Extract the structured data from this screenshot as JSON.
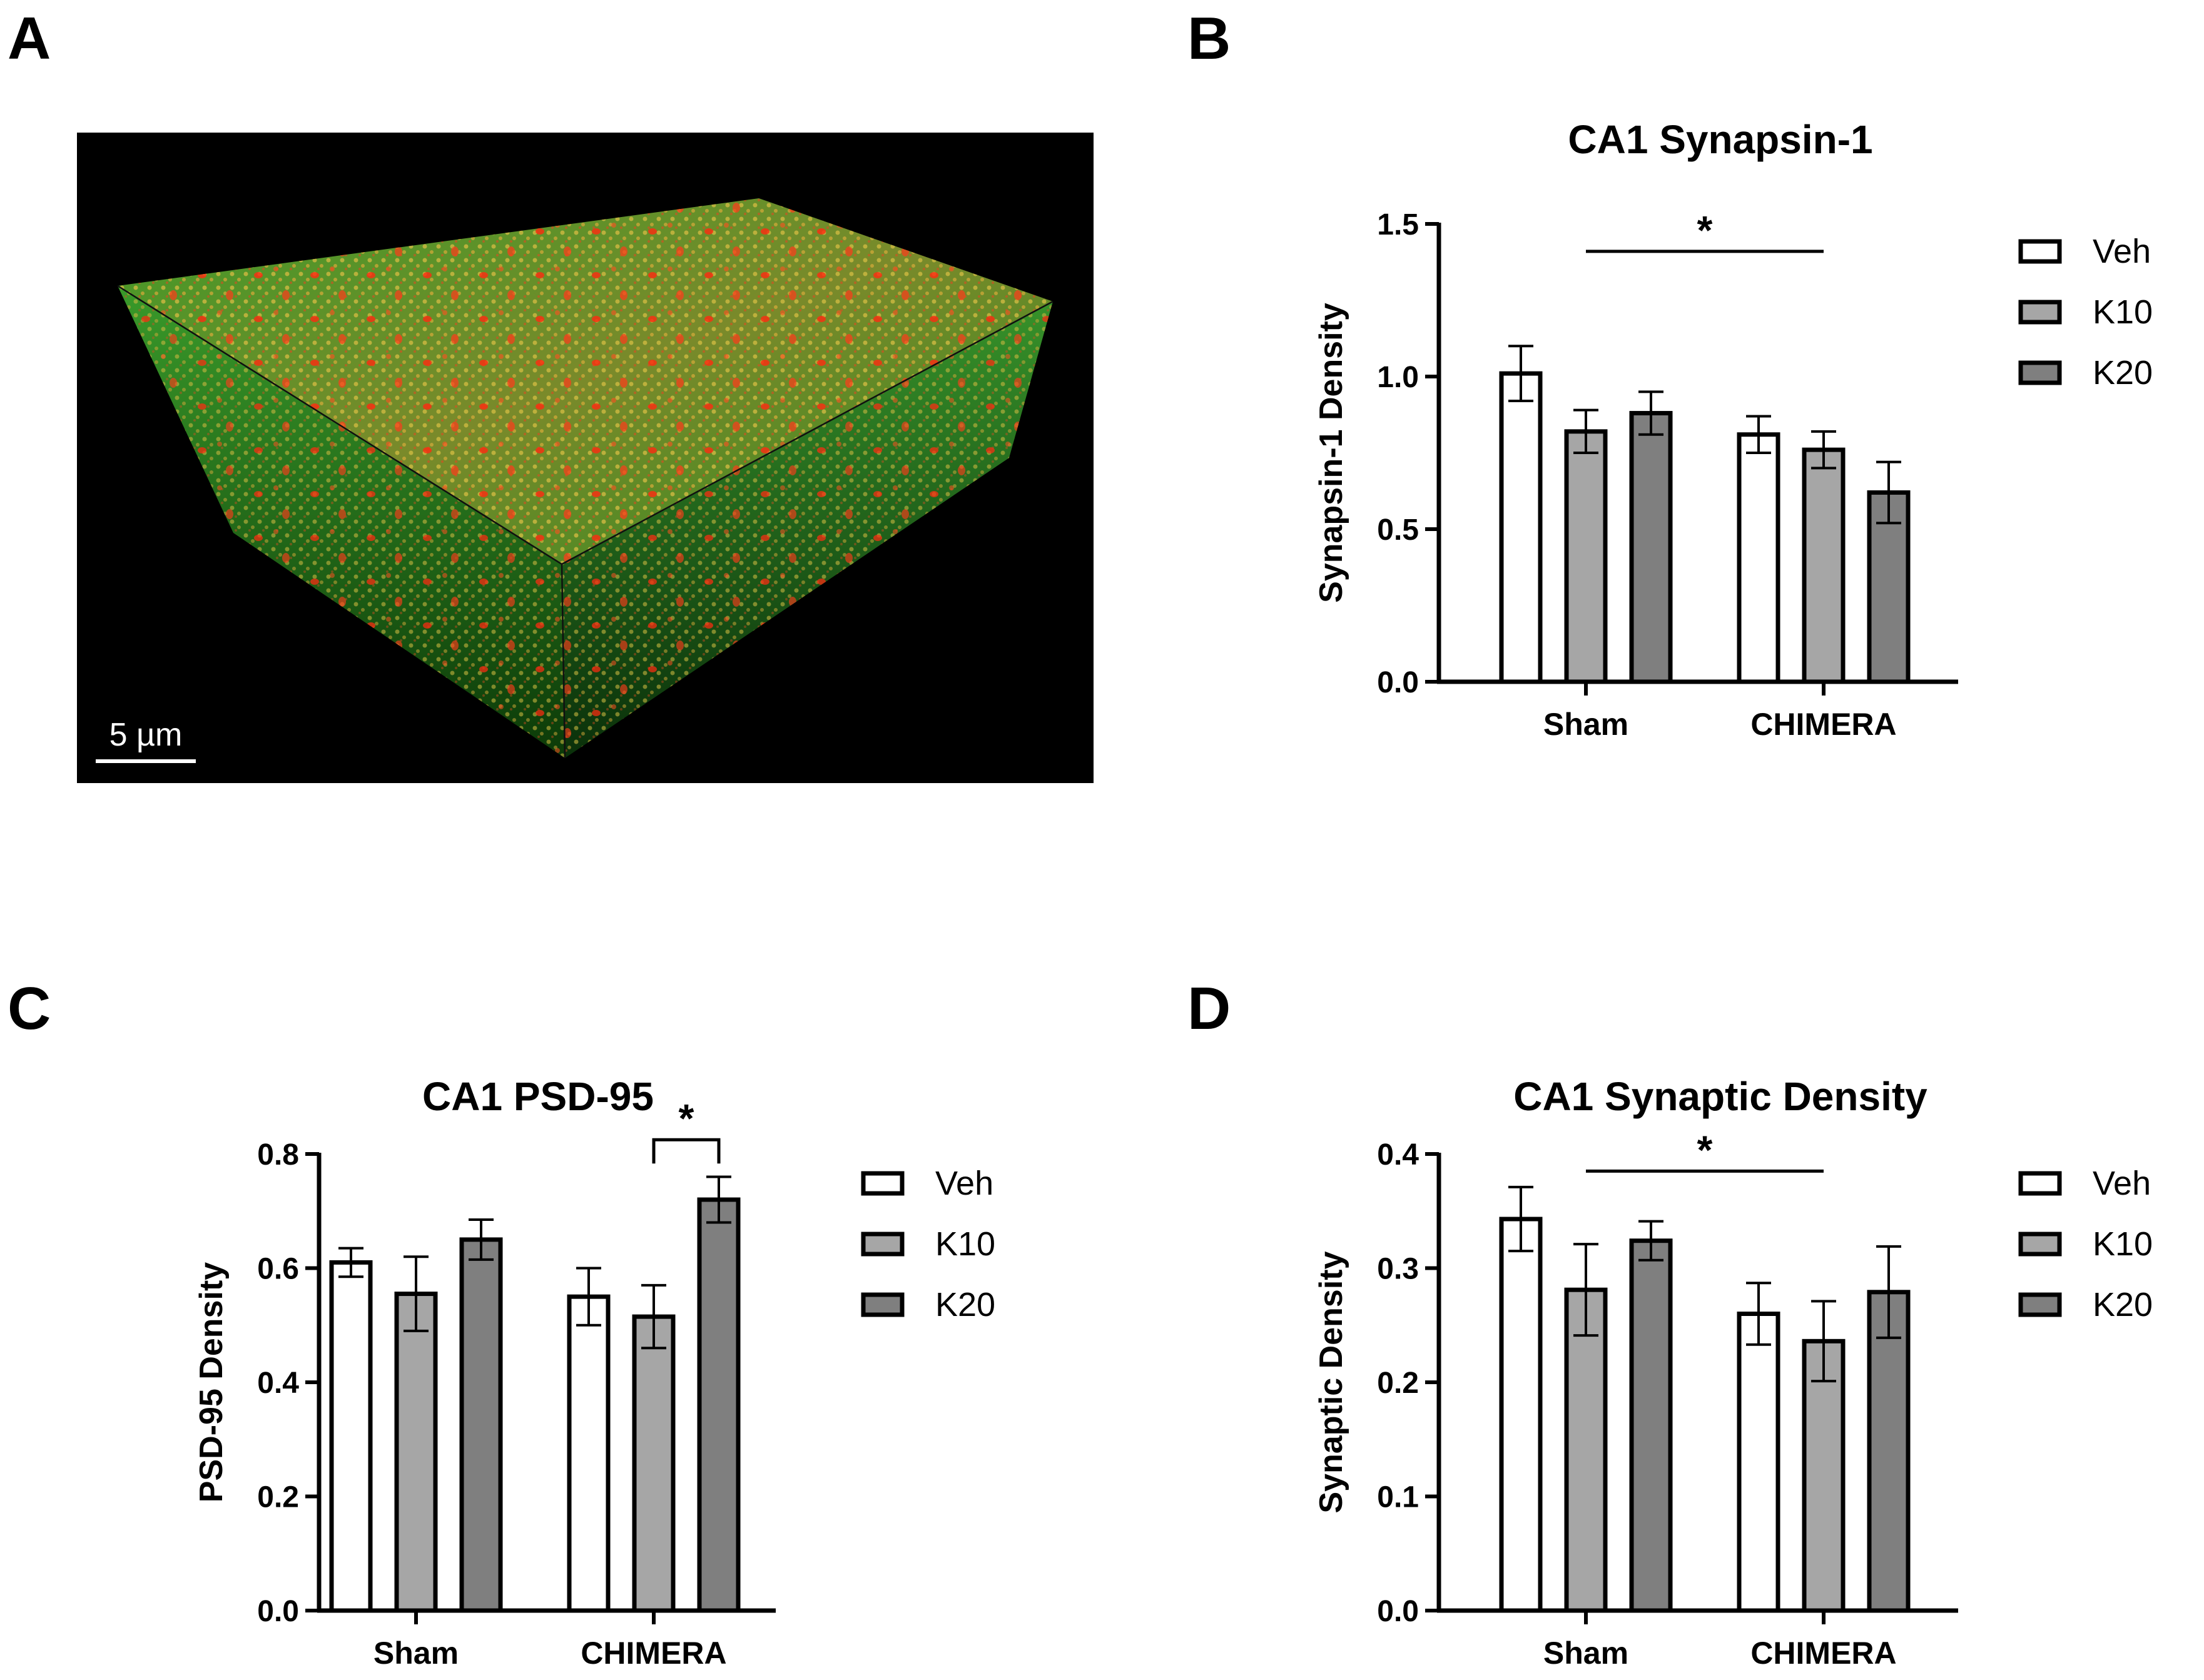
{
  "panels": {
    "a": {
      "letter": "A",
      "scale_label": "5 µm"
    },
    "b": {
      "letter": "B"
    },
    "c": {
      "letter": "C"
    },
    "d": {
      "letter": "D"
    }
  },
  "colors": {
    "Veh": "#ffffff",
    "K10": "#a6a6a6",
    "K20": "#7f7f7f",
    "axis": "#000000"
  },
  "chart_data": [
    {
      "id": "b",
      "type": "bar",
      "title": "CA1 Synapsin-1",
      "ylabel": "Synapsin-1 Density",
      "xlabel": "",
      "ylim": [
        0,
        1.5
      ],
      "yticks": [
        "0.0",
        "0.5",
        "1.0",
        "1.5"
      ],
      "ytick_values": [
        0,
        0.5,
        1.0,
        1.5
      ],
      "categories": [
        "Sham",
        "CHIMERA"
      ],
      "series": [
        {
          "name": "Veh",
          "values": [
            1.01,
            0.81
          ],
          "errors": [
            0.09,
            0.06
          ]
        },
        {
          "name": "K10",
          "values": [
            0.82,
            0.76
          ],
          "errors": [
            0.07,
            0.06
          ]
        },
        {
          "name": "K20",
          "values": [
            0.88,
            0.62
          ],
          "errors": [
            0.07,
            0.1
          ]
        }
      ],
      "legend": [
        "Veh",
        "K10",
        "K20"
      ],
      "legend_position": "right",
      "significance": [
        {
          "type": "line",
          "from": [
            0,
            1
          ],
          "to": [
            1,
            1
          ],
          "y": 1.41,
          "label": "*"
        }
      ]
    },
    {
      "id": "c",
      "type": "bar",
      "title": "CA1 PSD-95",
      "ylabel": "PSD-95 Density",
      "xlabel": "",
      "ylim": [
        0,
        0.8
      ],
      "yticks": [
        "0.0",
        "0.2",
        "0.4",
        "0.6",
        "0.8"
      ],
      "ytick_values": [
        0,
        0.2,
        0.4,
        0.6,
        0.8
      ],
      "categories": [
        "Sham",
        "CHIMERA"
      ],
      "series": [
        {
          "name": "Veh",
          "values": [
            0.61,
            0.55
          ],
          "errors": [
            0.025,
            0.05
          ]
        },
        {
          "name": "K10",
          "values": [
            0.555,
            0.515
          ],
          "errors": [
            0.065,
            0.055
          ]
        },
        {
          "name": "K20",
          "values": [
            0.65,
            0.72
          ],
          "errors": [
            0.035,
            0.04
          ]
        }
      ],
      "legend": [
        "Veh",
        "K10",
        "K20"
      ],
      "legend_position": "right",
      "significance": [
        {
          "type": "bracket",
          "from": [
            1,
            1
          ],
          "to": [
            1,
            2
          ],
          "y": 0.825,
          "label": "*"
        }
      ]
    },
    {
      "id": "d",
      "type": "bar",
      "title": "CA1 Synaptic Density",
      "ylabel": "Synaptic Density",
      "xlabel": "",
      "ylim": [
        0,
        0.4
      ],
      "yticks": [
        "0.0",
        "0.1",
        "0.2",
        "0.3",
        "0.4"
      ],
      "ytick_values": [
        0,
        0.1,
        0.2,
        0.3,
        0.4
      ],
      "categories": [
        "Sham",
        "CHIMERA"
      ],
      "series": [
        {
          "name": "Veh",
          "values": [
            0.343,
            0.26
          ],
          "errors": [
            0.028,
            0.027
          ]
        },
        {
          "name": "K10",
          "values": [
            0.281,
            0.236
          ],
          "errors": [
            0.04,
            0.035
          ]
        },
        {
          "name": "K20",
          "values": [
            0.324,
            0.279
          ],
          "errors": [
            0.017,
            0.04
          ]
        }
      ],
      "legend": [
        "Veh",
        "K10",
        "K20"
      ],
      "legend_position": "right",
      "significance": [
        {
          "type": "line",
          "from": [
            0,
            1
          ],
          "to": [
            1,
            1
          ],
          "y": 0.385,
          "label": "*"
        }
      ]
    }
  ]
}
